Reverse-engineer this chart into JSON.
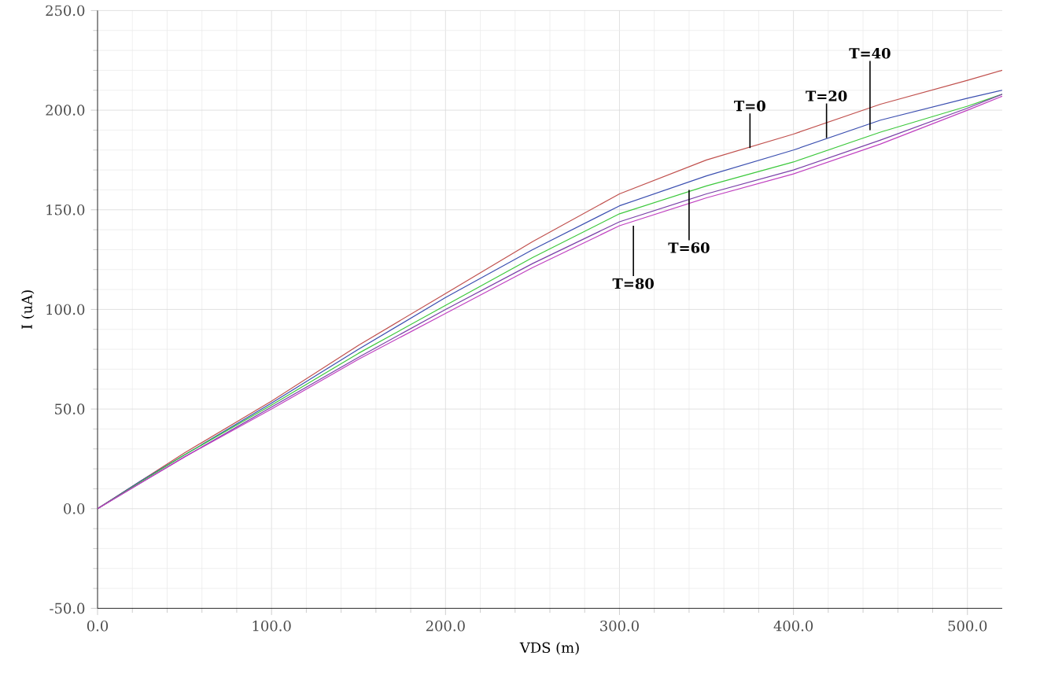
{
  "chart_data": {
    "type": "line",
    "xlabel": "VDS (m)",
    "ylabel": "I (uA)",
    "x": [
      0,
      25,
      50,
      100,
      150,
      200,
      250,
      300,
      350,
      400,
      450,
      500,
      520
    ],
    "series": [
      {
        "color": "#c0504d",
        "values": [
          0,
          14,
          28,
          54,
          82,
          108,
          134,
          158,
          175,
          188,
          203,
          215,
          220
        ]
      },
      {
        "color": "#3b4fb0",
        "values": [
          0,
          14,
          27,
          53,
          80,
          106,
          130,
          152,
          167,
          180,
          195,
          206,
          210
        ]
      },
      {
        "color": "#3cc83c",
        "values": [
          0,
          null,
          27,
          52,
          78,
          102,
          126,
          148,
          162,
          174,
          189,
          202,
          208
        ]
      },
      {
        "color": "#7a3fa8",
        "values": [
          0,
          13,
          26,
          51,
          76,
          100,
          123,
          144,
          158,
          170,
          185,
          201,
          208
        ]
      },
      {
        "color": "#c040c0",
        "values": [
          0,
          13,
          26,
          50,
          75,
          98,
          121,
          142,
          156,
          168,
          183,
          200,
          207
        ]
      }
    ],
    "annotations": [
      {
        "text": "T=0",
        "x": 375,
        "y": 181
      },
      {
        "text": "T=20",
        "x": 419,
        "y": 186
      },
      {
        "text": "T=40",
        "x": 444,
        "y": 190
      },
      {
        "text": "T=60",
        "x": 340,
        "y": 160
      },
      {
        "text": "T=80",
        "x": 308,
        "y": 142
      }
    ],
    "xlim": [
      0,
      520
    ],
    "ylim": [
      -50,
      250
    ],
    "xticks": [
      {
        "value": 0,
        "label": "0.0"
      },
      {
        "value": 100,
        "label": "100.0"
      },
      {
        "value": 200,
        "label": "200.0"
      },
      {
        "value": 300,
        "label": "300.0"
      },
      {
        "value": 400,
        "label": "400.0"
      },
      {
        "value": 500,
        "label": "500.0"
      }
    ],
    "yticks": [
      {
        "value": -50,
        "label": "-50.0"
      },
      {
        "value": 0,
        "label": "0.0"
      },
      {
        "value": 50,
        "label": "50.0"
      },
      {
        "value": 100,
        "label": "100.0"
      },
      {
        "value": 150,
        "label": "150.0"
      },
      {
        "value": 200,
        "label": "200.0"
      },
      {
        "value": 250,
        "label": "250.0"
      }
    ],
    "grid": true,
    "marker": "none",
    "line_style": "solid"
  }
}
